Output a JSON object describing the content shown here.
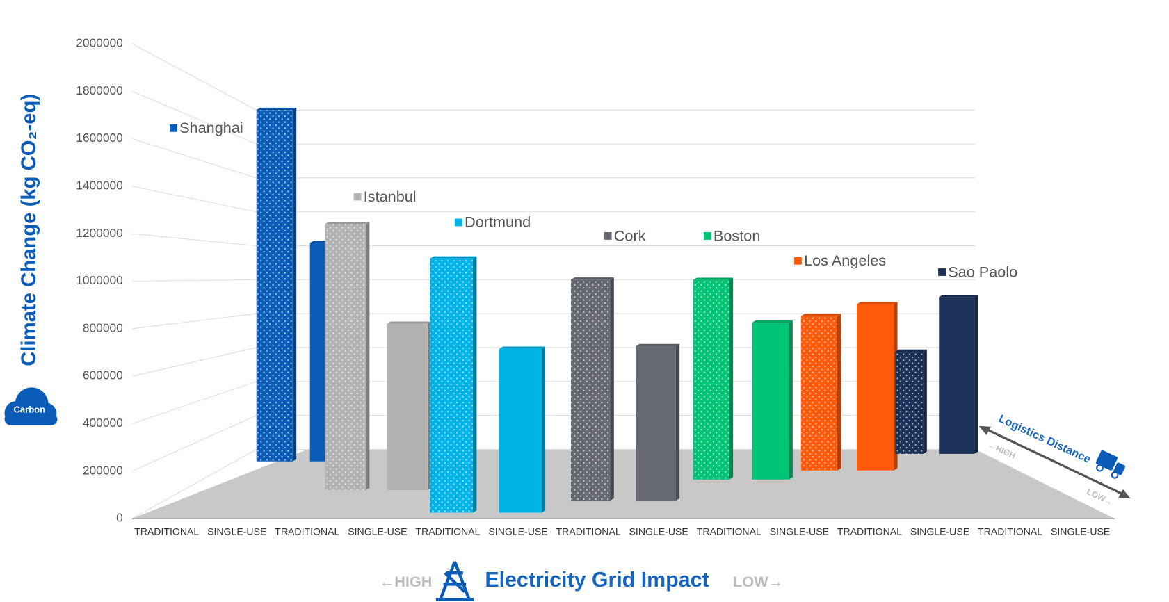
{
  "chart_data": {
    "type": "bar",
    "ylabel": "Climate Change (kg CO₂-eq)",
    "icon_label": "Carbon",
    "xlabel": "Electricity Grid Impact",
    "xlabel_left": "←HIGH",
    "xlabel_right": "LOW→",
    "depth_label": "Logistics Distance",
    "depth_high": "←HIGH",
    "depth_low": "LOW→",
    "ylim": [
      0,
      2000000
    ],
    "yticks": [
      0,
      200000,
      400000,
      600000,
      800000,
      1000000,
      1200000,
      1400000,
      1600000,
      1800000,
      2000000
    ],
    "xtick_labels": [
      "TRADITIONAL",
      "SINGLE-USE",
      "TRADITIONAL",
      "SINGLE-USE",
      "TRADITIONAL",
      "SINGLE-USE",
      "TRADITIONAL",
      "SINGLE-USE",
      "TRADITIONAL",
      "SINGLE-USE",
      "TRADITIONAL",
      "SINGLE-USE",
      "TRADITIONAL",
      "SINGLE-USE"
    ],
    "series": [
      {
        "name": "Shanghai",
        "color": "#0a5cb8",
        "values": [
          1480000,
          920000
        ]
      },
      {
        "name": "Istanbul",
        "color": "#b3b3b3",
        "values": [
          1120000,
          700000
        ]
      },
      {
        "name": "Dortmund",
        "color": "#00b3e6",
        "values": [
          1070000,
          690000
        ]
      },
      {
        "name": "Cork",
        "color": "#666a70",
        "values": [
          930000,
          650000
        ]
      },
      {
        "name": "Boston",
        "color": "#00c475",
        "values": [
          840000,
          660000
        ]
      },
      {
        "name": "Los Angeles",
        "color": "#ff5a0a",
        "values": [
          650000,
          700000
        ]
      },
      {
        "name": "Sao Paolo",
        "color": "#1c3157",
        "values": [
          430000,
          660000
        ]
      }
    ]
  }
}
